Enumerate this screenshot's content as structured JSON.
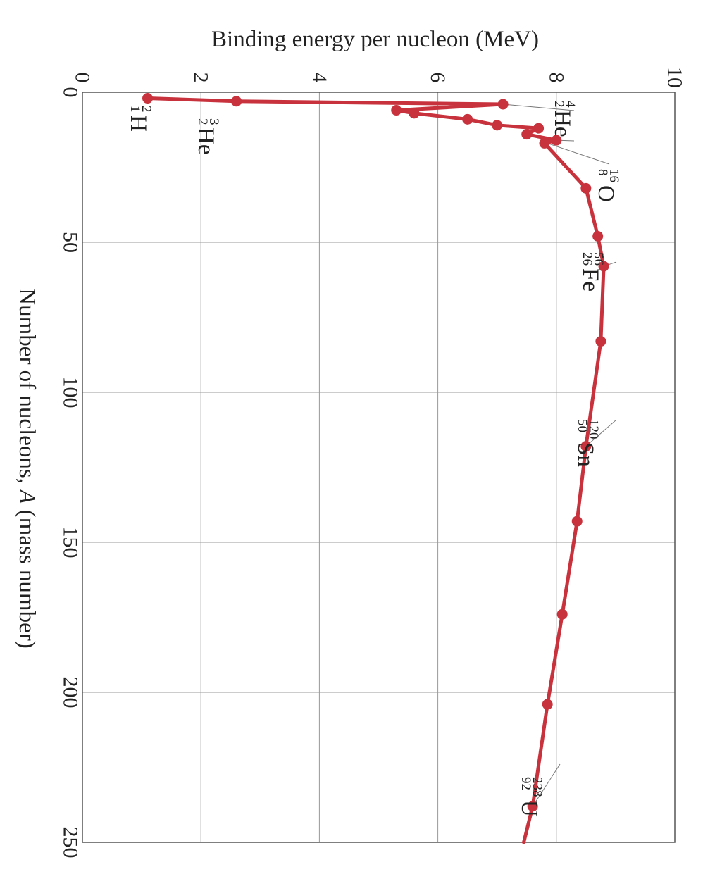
{
  "chart_data": {
    "type": "line",
    "orientation": "rotated 90 degrees clockwise",
    "title": "",
    "xlabel_prefix": "Number of nucleons, ",
    "xlabel_italic": "A",
    "xlabel_suffix": " (mass number)",
    "ylabel": "Binding energy per nucleon (MeV)",
    "xlim": [
      0,
      250
    ],
    "ylim": [
      0,
      10
    ],
    "x_ticks": [
      "0",
      "50",
      "100",
      "150",
      "200",
      "250"
    ],
    "y_ticks": [
      "0",
      "2",
      "4",
      "6",
      "8",
      "10"
    ],
    "grid": true,
    "color": "#c8323c",
    "series": [
      {
        "points": [
          {
            "x": 2,
            "y": 1.1
          },
          {
            "x": 3,
            "y": 2.6
          },
          {
            "x": 4,
            "y": 7.1
          },
          {
            "x": 6,
            "y": 5.3
          },
          {
            "x": 7,
            "y": 5.6
          },
          {
            "x": 9,
            "y": 6.5
          },
          {
            "x": 11,
            "y": 7.0
          },
          {
            "x": 12,
            "y": 7.7
          },
          {
            "x": 14,
            "y": 7.5
          },
          {
            "x": 16,
            "y": 8.0
          },
          {
            "x": 17,
            "y": 7.8
          },
          {
            "x": 32,
            "y": 8.5
          },
          {
            "x": 48,
            "y": 8.7
          },
          {
            "x": 58,
            "y": 8.8
          },
          {
            "x": 83,
            "y": 8.75
          },
          {
            "x": 118,
            "y": 8.5
          },
          {
            "x": 143,
            "y": 8.35
          },
          {
            "x": 174,
            "y": 8.1
          },
          {
            "x": 204,
            "y": 7.85
          },
          {
            "x": 238,
            "y": 7.6
          }
        ],
        "line_end": {
          "x": 250,
          "y": 7.45
        }
      }
    ],
    "annotations": [
      {
        "symbol": "H",
        "mass": "2",
        "atomic": "1"
      },
      {
        "symbol": "He",
        "mass": "3",
        "atomic": "2"
      },
      {
        "symbol": "He",
        "mass": "4",
        "atomic": "2"
      },
      {
        "symbol": "O",
        "mass": "16",
        "atomic": "8"
      },
      {
        "symbol": "Fe",
        "mass": "56",
        "atomic": "26"
      },
      {
        "symbol": "Sn",
        "mass": "120",
        "atomic": "50"
      },
      {
        "symbol": "U",
        "mass": "238",
        "atomic": "92"
      }
    ]
  }
}
